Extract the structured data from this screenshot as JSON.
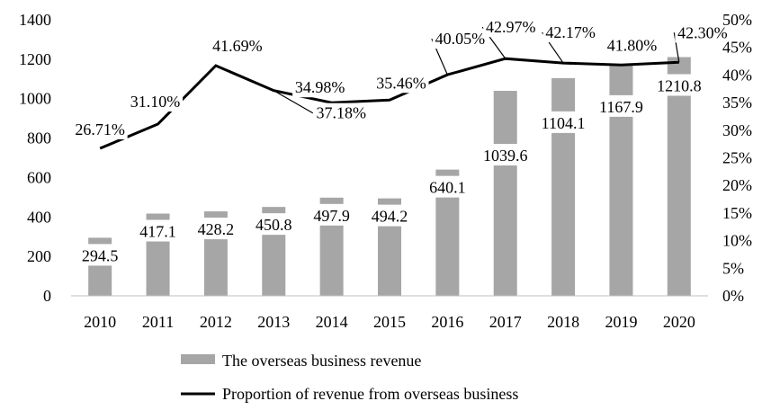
{
  "chart_data": {
    "type": "bar",
    "categories": [
      "2010",
      "2011",
      "2012",
      "2013",
      "2014",
      "2015",
      "2016",
      "2017",
      "2018",
      "2019",
      "2020"
    ],
    "series": [
      {
        "name": "The overseas business revenue",
        "type": "bar",
        "axis": "left",
        "values": [
          294.5,
          417.1,
          428.2,
          450.8,
          497.9,
          494.2,
          640.1,
          1039.6,
          1104.1,
          1167.9,
          1210.8
        ],
        "labels": [
          "294.5",
          "417.1",
          "428.2",
          "450.8",
          "497.9",
          "494.2",
          "640.1",
          "1039.6",
          "1104.1",
          "1167.9",
          "1210.8"
        ],
        "color": "#a6a6a6"
      },
      {
        "name": "Proportion of revenue from overseas business",
        "type": "line",
        "axis": "right",
        "values": [
          26.71,
          31.1,
          41.69,
          37.18,
          34.98,
          35.46,
          40.05,
          42.97,
          42.17,
          41.8,
          42.3
        ],
        "labels": [
          "26.71%",
          "31.10%",
          "41.69%",
          "37.18%",
          "34.98%",
          "35.46%",
          "40.05%",
          "42.97%",
          "42.17%",
          "41.80%",
          "42.30%"
        ],
        "color": "#000000"
      }
    ],
    "y_left": {
      "min": 0,
      "max": 1400,
      "ticks": [
        "0",
        "200",
        "400",
        "600",
        "800",
        "1000",
        "1200",
        "1400"
      ]
    },
    "y_right": {
      "min": 0,
      "max": 50,
      "ticks": [
        "0%",
        "5%",
        "10%",
        "15%",
        "20%",
        "25%",
        "30%",
        "35%",
        "40%",
        "45%",
        "50%"
      ]
    },
    "title": "",
    "xlabel": "",
    "ylabel": "",
    "grid": false,
    "legend_position": "bottom"
  }
}
